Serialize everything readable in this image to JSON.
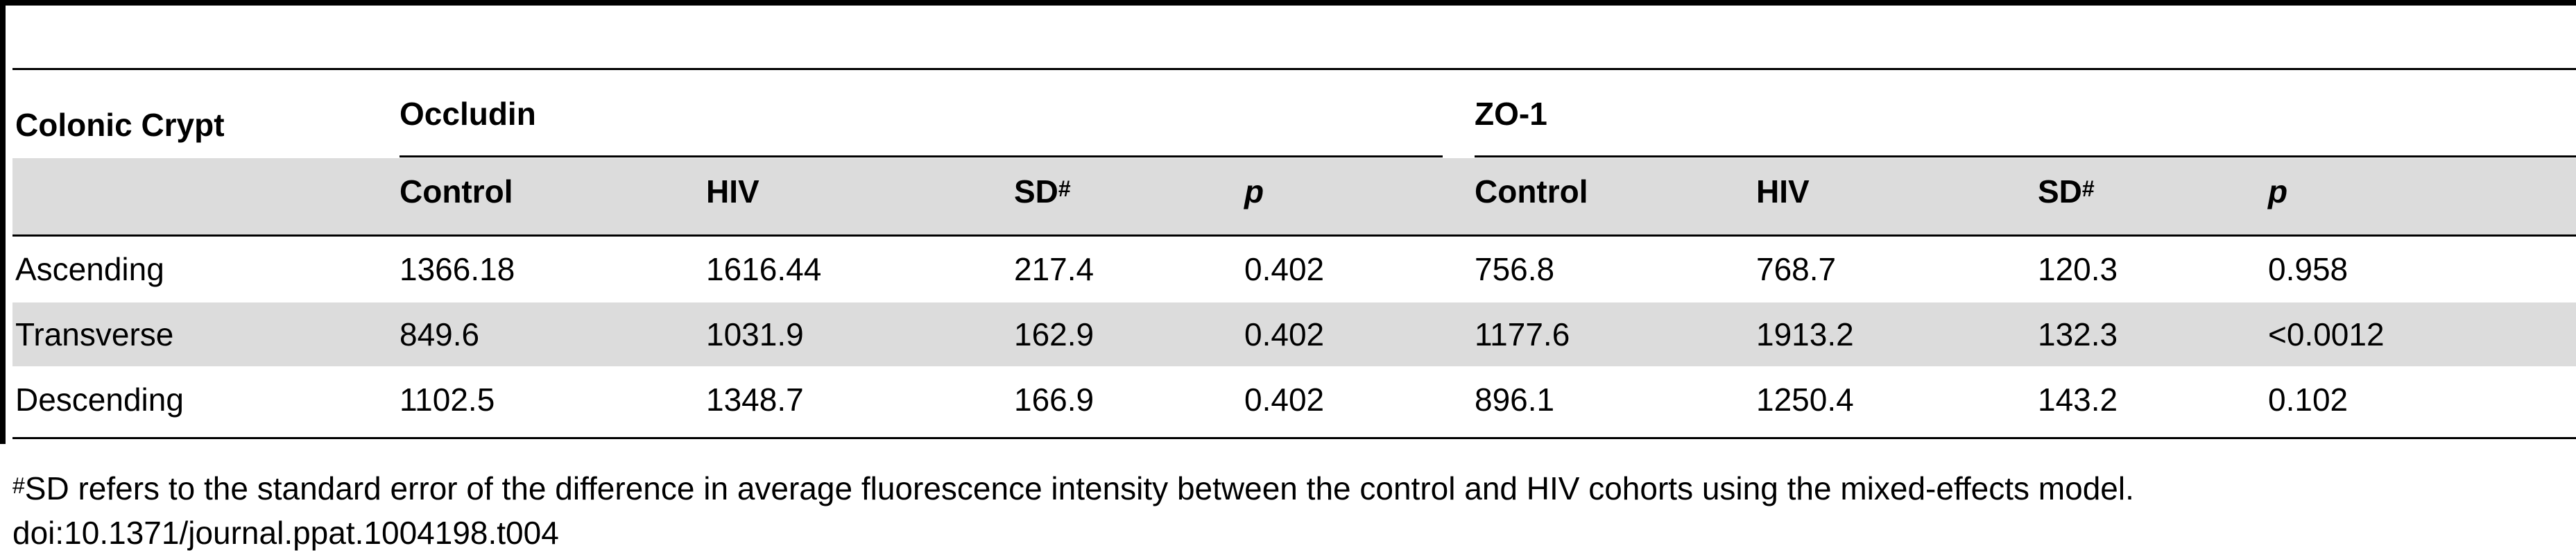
{
  "table": {
    "row_header_label": "Colonic Crypt",
    "groups": [
      "Occludin",
      "ZO-1"
    ],
    "columns": [
      "Control",
      "HIV",
      "SD",
      "p",
      "Control",
      "HIV",
      "SD",
      "p"
    ],
    "sd_marker": "#",
    "rows": [
      {
        "label": "Ascending",
        "values": [
          "1366.18",
          "1616.44",
          "217.4",
          "0.402",
          "756.8",
          "768.7",
          "120.3",
          "0.958"
        ]
      },
      {
        "label": "Transverse",
        "values": [
          "849.6",
          "1031.9",
          "162.9",
          "0.402",
          "1177.6",
          "1913.2",
          "132.3",
          "<0.0012"
        ]
      },
      {
        "label": "Descending",
        "values": [
          "1102.5",
          "1348.7",
          "166.9",
          "0.402",
          "896.1",
          "1250.4",
          "143.2",
          "0.102"
        ]
      }
    ]
  },
  "footnote": {
    "marker": "#",
    "text": "SD refers to the standard error of the difference in average fluorescence intensity between the control and HIV cohorts using the mixed-effects model.",
    "doi": "doi:10.1371/journal.ppat.1004198.t004"
  }
}
